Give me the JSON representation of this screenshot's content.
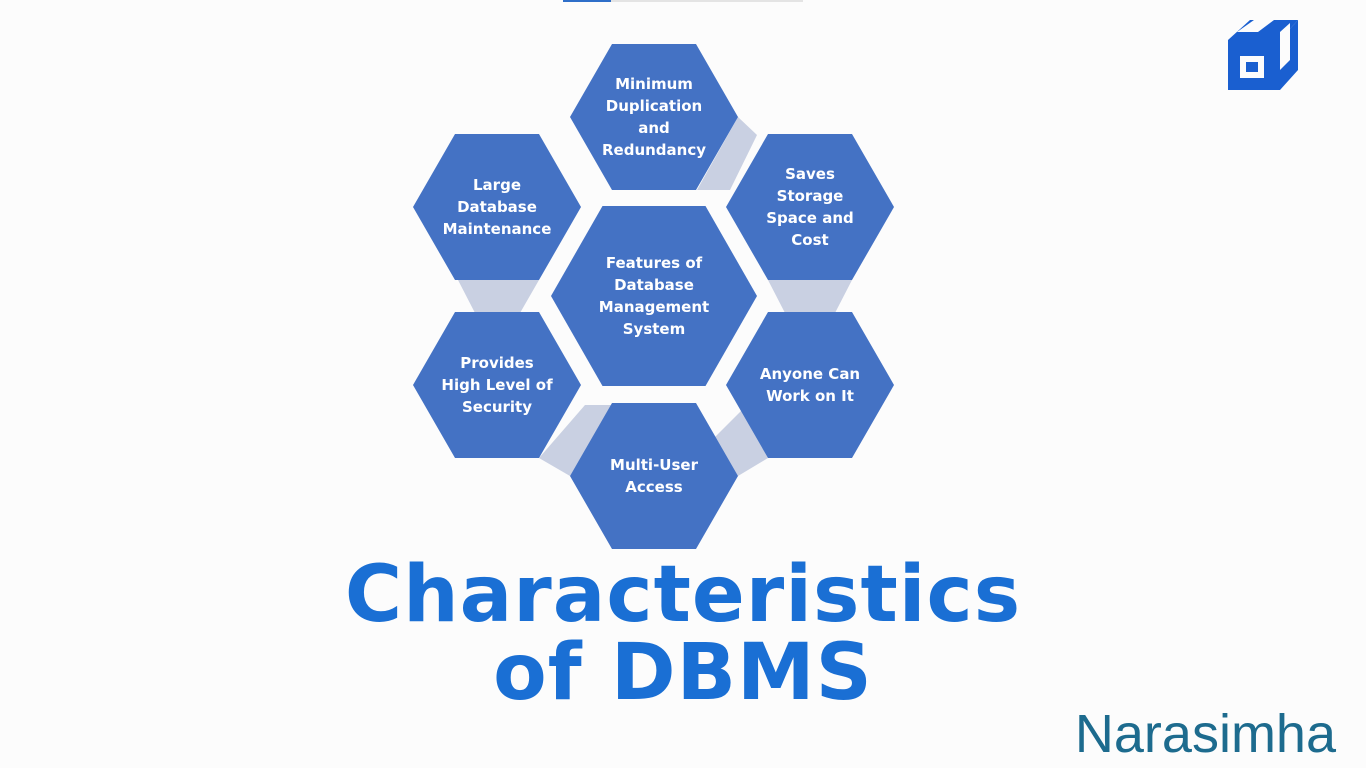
{
  "diagram": {
    "center": {
      "lines": [
        "Features of",
        "Database",
        "Management",
        "System"
      ]
    },
    "hexagons": [
      {
        "lines": [
          "Minimum",
          "Duplication",
          "and",
          "Redundancy"
        ]
      },
      {
        "lines": [
          "Saves",
          "Storage",
          "Space and",
          "Cost"
        ]
      },
      {
        "lines": [
          "Anyone Can",
          "Work on It"
        ]
      },
      {
        "lines": [
          "Multi-User",
          "Access"
        ]
      },
      {
        "lines": [
          "Provides",
          "High Level of",
          "Security"
        ]
      },
      {
        "lines": [
          "Large",
          "Database",
          "Maintenance"
        ]
      }
    ],
    "colors": {
      "hex_fill": "#4472c4",
      "connector_fill": "#c9d0e2"
    }
  },
  "title": {
    "line1": "Characteristics",
    "line2": "of DBMS",
    "color": "#1a6fd4"
  },
  "author": {
    "name": "Narasimha",
    "color": "#1d6b8e"
  },
  "logo": {
    "icon": "cube-logo-icon",
    "color": "#1a5fd0"
  }
}
